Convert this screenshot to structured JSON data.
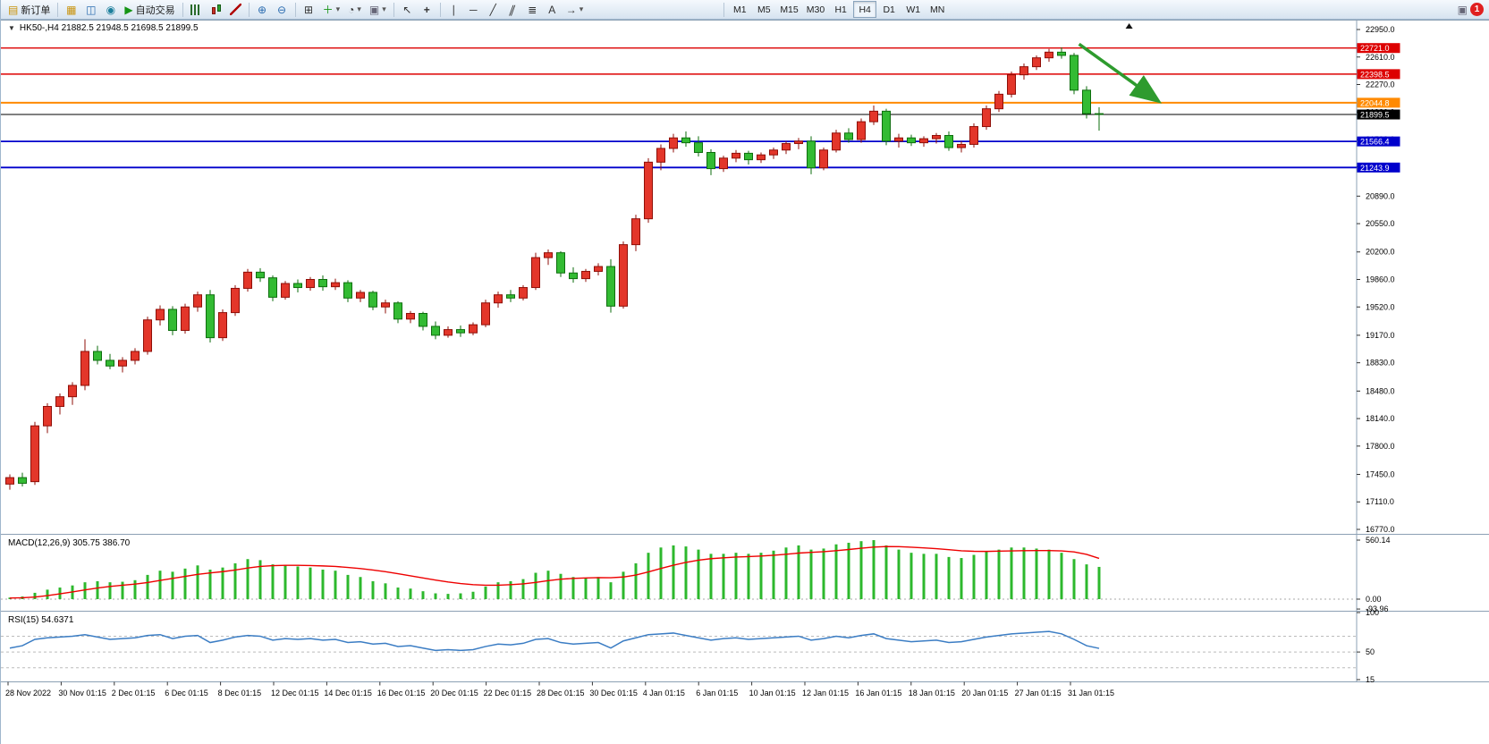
{
  "toolbar": {
    "new_order_label": "新订单",
    "auto_trading_label": "自动交易",
    "timeframes": [
      "M1",
      "M5",
      "M15",
      "M30",
      "H1",
      "H4",
      "D1",
      "W1",
      "MN"
    ],
    "active_timeframe": "H4",
    "notification_count": "1"
  },
  "icons": {
    "new_order": "▤",
    "charts": "▦",
    "market_watch": "◫",
    "navigator": "◉",
    "auto_trading": "▶",
    "zoom_in": "⊕",
    "zoom_out": "⊖",
    "tile_windows": "⊞",
    "indicators": "＋",
    "clock": "◔",
    "template": "▣",
    "cursor": "↖",
    "crosshair": "+",
    "vline": "∣",
    "hline": "─",
    "trendline": "╱",
    "channel": "∥",
    "fibonacci": "≣",
    "text_tool": "A",
    "arrows_tool": "→",
    "shapes": "▭",
    "dropdown": "▾",
    "window": "▣",
    "collapse": "▼",
    "shift_marker": "▲"
  },
  "chart_header": {
    "collapse_icon": "▼",
    "ohlc_line": "HK50-,H4  21882.5 21948.5 21698.5 21899.5"
  },
  "indicators": {
    "macd_label": "MACD(12,26,9) 305.75 386.70",
    "rsi_label": "RSI(15) 54.6371"
  },
  "chart_data": [
    {
      "type": "candlestick",
      "symbol": "HK50-",
      "period": "H4",
      "ohlc_display": {
        "open": 21882.5,
        "high": 21948.5,
        "low": 21698.5,
        "close": 21899.5
      },
      "y_range": [
        16770.0,
        22950.0
      ],
      "y_axis_ticks": [
        "22950.0",
        "22610.0",
        "22270.0",
        "21930.0",
        "21590.0",
        "21250.0",
        "20890.0",
        "20550.0",
        "20200.0",
        "19860.0",
        "19520.0",
        "19170.0",
        "18830.0",
        "18480.0",
        "18140.0",
        "17800.0",
        "17450.0",
        "17110.0",
        "16770.0"
      ],
      "hlines": [
        {
          "price": 22721.0,
          "label": "22721.0",
          "color": "#dd0000",
          "width": 1.4
        },
        {
          "price": 22398.5,
          "label": "22398.5",
          "color": "#dd0000",
          "width": 1.4
        },
        {
          "price": 22044.8,
          "label": "22044.8",
          "color": "#ff8a00",
          "width": 2
        },
        {
          "price": 21899.5,
          "label": "21899.5",
          "color": "#000000",
          "width": 1,
          "role": "current-price"
        },
        {
          "price": 21566.4,
          "label": "21566.4",
          "color": "#0000cc",
          "width": 1.8
        },
        {
          "price": 21243.9,
          "label": "21243.9",
          "color": "#0000cc",
          "width": 1.8
        }
      ],
      "colors": {
        "up_fill": "#e3362a",
        "up_stroke": "#8f0f08",
        "down_fill": "#33bb33",
        "down_stroke": "#0e6e0e"
      },
      "trend_arrow": {
        "from_candle": 85.4,
        "from_price": 22770,
        "to_candle": 91.6,
        "to_price": 22080,
        "color": "#2e9b2e"
      },
      "shift_marker_candle": 89.4,
      "x_labels": [
        "28 Nov 2022",
        "30 Nov 01:15",
        "2 Dec 01:15",
        "6 Dec 01:15",
        "8 Dec 01:15",
        "12 Dec 01:15",
        "14 Dec 01:15",
        "16 Dec 01:15",
        "20 Dec 01:15",
        "22 Dec 01:15",
        "28 Dec 01:15",
        "30 Dec 01:15",
        "4 Jan 01:15",
        "6 Jan 01:15",
        "10 Jan 01:15",
        "12 Jan 01:15",
        "16 Jan 01:15",
        "18 Jan 01:15",
        "20 Jan 01:15",
        "27 Jan 01:15",
        "31 Jan 01:15"
      ],
      "candles": [
        [
          17330,
          17450,
          17260,
          17410
        ],
        [
          17410,
          17470,
          17300,
          17340
        ],
        [
          17360,
          18100,
          17320,
          18050
        ],
        [
          18050,
          18330,
          17960,
          18290
        ],
        [
          18290,
          18450,
          18190,
          18410
        ],
        [
          18410,
          18590,
          18310,
          18550
        ],
        [
          18550,
          19120,
          18490,
          18970
        ],
        [
          18970,
          19040,
          18810,
          18860
        ],
        [
          18860,
          18940,
          18750,
          18790
        ],
        [
          18790,
          18900,
          18710,
          18860
        ],
        [
          18860,
          19010,
          18810,
          18970
        ],
        [
          18970,
          19400,
          18930,
          19360
        ],
        [
          19360,
          19540,
          19290,
          19490
        ],
        [
          19490,
          19530,
          19170,
          19230
        ],
        [
          19230,
          19560,
          19190,
          19520
        ],
        [
          19520,
          19710,
          19460,
          19670
        ],
        [
          19670,
          19730,
          19080,
          19140
        ],
        [
          19140,
          19490,
          19100,
          19450
        ],
        [
          19450,
          19790,
          19410,
          19750
        ],
        [
          19750,
          19990,
          19710,
          19950
        ],
        [
          19950,
          20000,
          19830,
          19880
        ],
        [
          19880,
          19910,
          19590,
          19640
        ],
        [
          19640,
          19840,
          19610,
          19810
        ],
        [
          19810,
          19860,
          19700,
          19760
        ],
        [
          19760,
          19890,
          19720,
          19860
        ],
        [
          19860,
          19910,
          19720,
          19770
        ],
        [
          19770,
          19870,
          19730,
          19820
        ],
        [
          19820,
          19850,
          19580,
          19630
        ],
        [
          19630,
          19730,
          19580,
          19700
        ],
        [
          19700,
          19720,
          19480,
          19520
        ],
        [
          19520,
          19610,
          19440,
          19570
        ],
        [
          19570,
          19590,
          19320,
          19370
        ],
        [
          19370,
          19470,
          19320,
          19440
        ],
        [
          19440,
          19460,
          19230,
          19280
        ],
        [
          19280,
          19340,
          19120,
          19170
        ],
        [
          19170,
          19280,
          19140,
          19240
        ],
        [
          19240,
          19290,
          19150,
          19200
        ],
        [
          19200,
          19330,
          19170,
          19300
        ],
        [
          19300,
          19610,
          19270,
          19570
        ],
        [
          19570,
          19710,
          19510,
          19670
        ],
        [
          19670,
          19730,
          19580,
          19630
        ],
        [
          19630,
          19790,
          19600,
          19760
        ],
        [
          19760,
          20190,
          19730,
          20130
        ],
        [
          20130,
          20230,
          20040,
          20190
        ],
        [
          20190,
          20210,
          19890,
          19940
        ],
        [
          19940,
          20010,
          19820,
          19870
        ],
        [
          19870,
          19990,
          19830,
          19960
        ],
        [
          19960,
          20060,
          19910,
          20020
        ],
        [
          20020,
          20110,
          19450,
          19530
        ],
        [
          19530,
          20330,
          19500,
          20290
        ],
        [
          20290,
          20660,
          20210,
          20610
        ],
        [
          20610,
          21360,
          20560,
          21310
        ],
        [
          21310,
          21530,
          21210,
          21480
        ],
        [
          21480,
          21660,
          21430,
          21610
        ],
        [
          21610,
          21690,
          21500,
          21550
        ],
        [
          21550,
          21630,
          21380,
          21430
        ],
        [
          21430,
          21470,
          21150,
          21230
        ],
        [
          21230,
          21390,
          21190,
          21360
        ],
        [
          21360,
          21460,
          21310,
          21420
        ],
        [
          21420,
          21450,
          21280,
          21340
        ],
        [
          21340,
          21430,
          21300,
          21400
        ],
        [
          21400,
          21490,
          21350,
          21460
        ],
        [
          21460,
          21570,
          21410,
          21540
        ],
        [
          21540,
          21610,
          21470,
          21570
        ],
        [
          21570,
          21630,
          21160,
          21240
        ],
        [
          21240,
          21490,
          21210,
          21460
        ],
        [
          21460,
          21710,
          21430,
          21670
        ],
        [
          21670,
          21730,
          21550,
          21590
        ],
        [
          21590,
          21850,
          21550,
          21810
        ],
        [
          21810,
          22010,
          21770,
          21940
        ],
        [
          21940,
          21970,
          21520,
          21570
        ],
        [
          21570,
          21660,
          21490,
          21610
        ],
        [
          21610,
          21650,
          21510,
          21550
        ],
        [
          21550,
          21630,
          21500,
          21600
        ],
        [
          21600,
          21670,
          21540,
          21640
        ],
        [
          21640,
          21690,
          21450,
          21490
        ],
        [
          21490,
          21570,
          21430,
          21530
        ],
        [
          21530,
          21790,
          21490,
          21750
        ],
        [
          21750,
          22010,
          21710,
          21970
        ],
        [
          21970,
          22190,
          21930,
          22150
        ],
        [
          22150,
          22430,
          22110,
          22390
        ],
        [
          22390,
          22530,
          22330,
          22490
        ],
        [
          22490,
          22630,
          22450,
          22600
        ],
        [
          22600,
          22710,
          22550,
          22670
        ],
        [
          22670,
          22730,
          22590,
          22630
        ],
        [
          22630,
          22660,
          22150,
          22200
        ],
        [
          22200,
          22250,
          21850,
          21910
        ],
        [
          21910,
          21990,
          21700,
          21899.5
        ]
      ]
    },
    {
      "type": "macd",
      "label": "MACD(12,26,9) 305.75 386.70",
      "params": [
        12,
        26,
        9
      ],
      "current_macd": 305.75,
      "current_signal": 386.7,
      "y_max": 560.14,
      "y_axis_ticks": [
        "560.14",
        "0.00",
        "-93.96"
      ],
      "colors": {
        "histogram": "#2db82d",
        "signal": "#ee0000"
      },
      "histogram": [
        15,
        25,
        60,
        90,
        110,
        130,
        160,
        170,
        160,
        165,
        180,
        230,
        270,
        260,
        290,
        320,
        280,
        300,
        340,
        380,
        370,
        330,
        320,
        310,
        300,
        280,
        270,
        230,
        210,
        170,
        150,
        110,
        100,
        75,
        55,
        50,
        55,
        70,
        120,
        160,
        170,
        190,
        250,
        270,
        240,
        210,
        200,
        210,
        160,
        260,
        340,
        440,
        490,
        510,
        500,
        470,
        430,
        430,
        440,
        430,
        440,
        460,
        490,
        510,
        470,
        480,
        520,
        535,
        550,
        560,
        510,
        470,
        440,
        430,
        430,
        400,
        390,
        420,
        450,
        470,
        490,
        490,
        480,
        470,
        440,
        380,
        330,
        306
      ],
      "signal": [
        10,
        13,
        20,
        33,
        50,
        68,
        88,
        106,
        120,
        132,
        143,
        158,
        178,
        197,
        216,
        235,
        249,
        261,
        276,
        295,
        310,
        318,
        321,
        321,
        319,
        315,
        310,
        301,
        290,
        276,
        260,
        241,
        221,
        201,
        181,
        163,
        148,
        137,
        132,
        132,
        137,
        145,
        159,
        176,
        189,
        197,
        201,
        204,
        203,
        210,
        229,
        258,
        291,
        322,
        349,
        370,
        384,
        392,
        399,
        404,
        409,
        416,
        426,
        437,
        444,
        450,
        460,
        471,
        483,
        494,
        499,
        498,
        493,
        486,
        479,
        469,
        459,
        454,
        453,
        456,
        458,
        460,
        461,
        461,
        458,
        448,
        425,
        387
      ]
    },
    {
      "type": "rsi",
      "label": "RSI(15) 54.6371",
      "period": 15,
      "current": 54.6371,
      "y_range": [
        15,
        100
      ],
      "y_axis_ticks": [
        "100",
        "50",
        "15"
      ],
      "levels": [
        70,
        50,
        30
      ],
      "color": "#3b7dc4",
      "values": [
        55,
        58,
        66,
        68,
        69,
        70,
        72,
        69,
        66,
        67,
        68,
        71,
        72,
        67,
        70,
        71,
        62,
        65,
        69,
        71,
        70,
        65,
        67,
        66,
        67,
        65,
        66,
        62,
        63,
        60,
        61,
        57,
        58,
        55,
        52,
        53,
        52,
        53,
        57,
        60,
        59,
        61,
        66,
        67,
        62,
        60,
        61,
        62,
        55,
        64,
        68,
        72,
        73,
        74,
        71,
        68,
        65,
        67,
        68,
        66,
        67,
        68,
        69,
        70,
        65,
        67,
        70,
        68,
        71,
        73,
        67,
        65,
        63,
        64,
        65,
        62,
        63,
        66,
        69,
        71,
        73,
        74,
        75,
        76,
        73,
        66,
        58,
        54.6
      ]
    }
  ]
}
